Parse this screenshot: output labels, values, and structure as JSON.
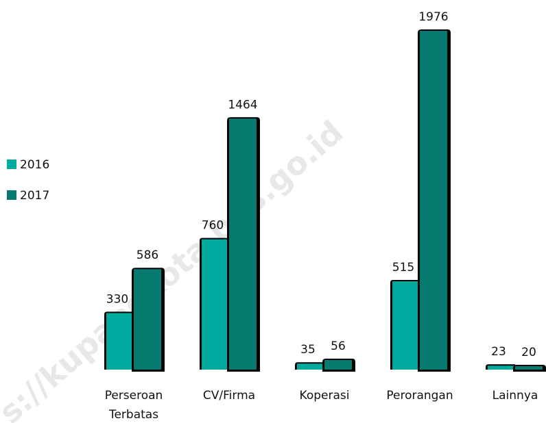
{
  "chart_data": {
    "type": "bar",
    "categories": [
      [
        "Perseroan",
        "Terbatas"
      ],
      [
        "CV/Firma"
      ],
      [
        "Koperasi"
      ],
      [
        "Perorangan"
      ],
      [
        "Lainnya"
      ]
    ],
    "series": [
      {
        "name": "2016",
        "color": "#00a99d",
        "values": [
          330,
          760,
          35,
          515,
          23
        ]
      },
      {
        "name": "2017",
        "color": "#077a6f",
        "values": [
          586,
          1464,
          56,
          1976,
          20
        ]
      }
    ],
    "legend": "left",
    "watermark": "s://kupangkota.bps.go.id"
  }
}
